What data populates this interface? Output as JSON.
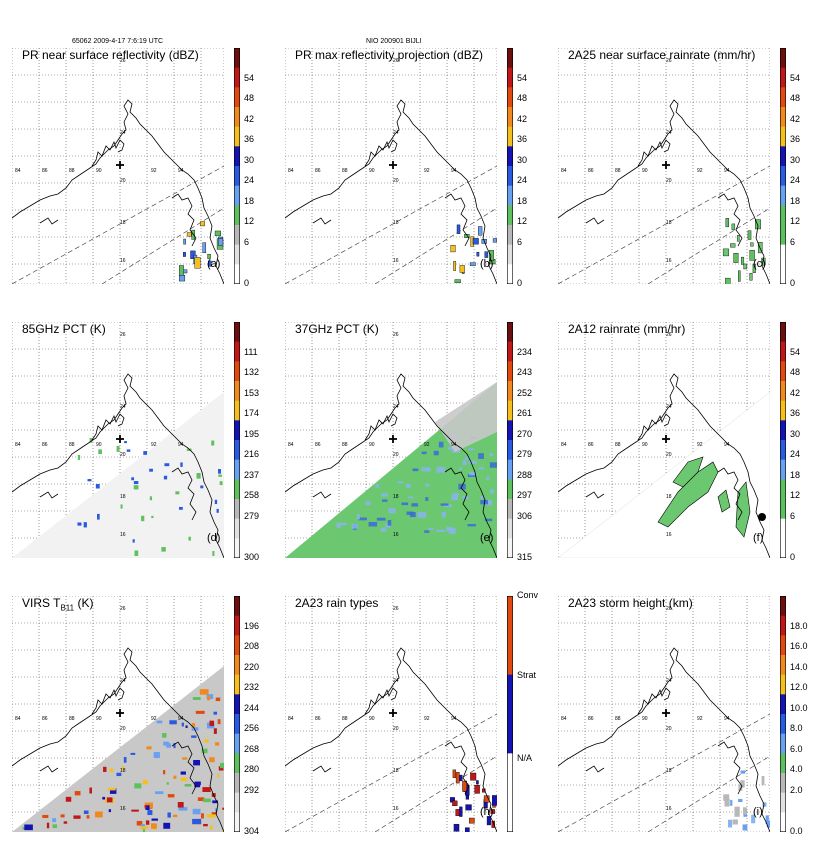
{
  "header": {
    "orbit_time": "65062 2009-4-17 7:6:19 UTC",
    "storm": "NIO 200901 BIJLI"
  },
  "map_ticks": {
    "lon": [
      "84",
      "86",
      "88",
      "90",
      "92",
      "94"
    ],
    "lat": [
      "26",
      "24",
      "20",
      "18",
      "16"
    ]
  },
  "chart_data": [
    {
      "type": "heatmap",
      "title": "PR near surface reflectivity (dBZ)",
      "panel_label": "(a)",
      "colorbar_ticks": [
        "54",
        "48",
        "42",
        "36",
        "30",
        "24",
        "18",
        "12",
        "6",
        "0"
      ],
      "colorbar_colors": [
        "#6b0f0f",
        "#c01818",
        "#e04a10",
        "#f08a20",
        "#f4c020",
        "#1414b4",
        "#2a5ae0",
        "#6aa0f0",
        "#60c060",
        "#b8b8b8",
        "#e0e0e0",
        "#ffffff"
      ],
      "swath": "narrow",
      "fill": "sparse"
    },
    {
      "type": "heatmap",
      "title": "PR max reflectivity projection (dBZ)",
      "panel_label": "(b)",
      "colorbar_ticks": [
        "54",
        "48",
        "42",
        "36",
        "30",
        "24",
        "18",
        "12",
        "6",
        "0"
      ],
      "colorbar_colors": [
        "#6b0f0f",
        "#c01818",
        "#e04a10",
        "#f08a20",
        "#f4c020",
        "#1414b4",
        "#2a5ae0",
        "#6aa0f0",
        "#60c060",
        "#b8b8b8",
        "#e0e0e0",
        "#ffffff"
      ],
      "swath": "narrow",
      "fill": "sparse"
    },
    {
      "type": "heatmap",
      "title": "2A25 near surface rainrate (mm/hr)",
      "panel_label": "(c)",
      "colorbar_ticks": [
        "54",
        "48",
        "42",
        "36",
        "30",
        "24",
        "18",
        "12",
        "6",
        "0"
      ],
      "colorbar_colors": [
        "#6b0f0f",
        "#c01818",
        "#e04a10",
        "#f08a20",
        "#f4c020",
        "#1414b4",
        "#2a5ae0",
        "#6aa0f0",
        "#60c060",
        "#60c060",
        "#ffffff",
        "#ffffff"
      ],
      "swath": "narrow",
      "fill": "sparse"
    },
    {
      "type": "heatmap",
      "title": "85GHz PCT (K)",
      "panel_label": "(d)",
      "colorbar_ticks": [
        "111",
        "132",
        "153",
        "174",
        "195",
        "216",
        "237",
        "258",
        "279",
        "300"
      ],
      "colorbar_colors": [
        "#6b0f0f",
        "#c01818",
        "#e04a10",
        "#f08a20",
        "#f4c020",
        "#1414b4",
        "#2a5ae0",
        "#6aa0f0",
        "#60c060",
        "#b8b8b8",
        "#e0e0e0",
        "#f4f4f4"
      ],
      "swath": "wide",
      "fill": "gray"
    },
    {
      "type": "heatmap",
      "title": "37GHz PCT (K)",
      "panel_label": "(e)",
      "colorbar_ticks": [
        "234",
        "243",
        "252",
        "261",
        "270",
        "279",
        "288",
        "297",
        "306",
        "315"
      ],
      "colorbar_colors": [
        "#6b0f0f",
        "#c01818",
        "#e04a10",
        "#f08a20",
        "#f4c020",
        "#1414b4",
        "#2a5ae0",
        "#6aa0f0",
        "#60c060",
        "#b8b8b8",
        "#e0e0e0",
        "#f4f4f4"
      ],
      "swath": "wide",
      "fill": "green"
    },
    {
      "type": "heatmap",
      "title": "2A12 rainrate (mm/hr)",
      "panel_label": "(f)",
      "colorbar_ticks": [
        "54",
        "48",
        "42",
        "36",
        "30",
        "24",
        "18",
        "12",
        "6",
        "0"
      ],
      "colorbar_colors": [
        "#6b0f0f",
        "#c01818",
        "#e04a10",
        "#f08a20",
        "#f4c020",
        "#1414b4",
        "#2a5ae0",
        "#6aa0f0",
        "#60c060",
        "#60c060",
        "#ffffff",
        "#ffffff"
      ],
      "swath": "wide",
      "fill": "patches"
    },
    {
      "type": "heatmap",
      "title": "VIRS T",
      "title_sub": "B11",
      "title_suffix": " (K)",
      "panel_label": "",
      "colorbar_ticks": [
        "196",
        "208",
        "220",
        "232",
        "244",
        "256",
        "268",
        "280",
        "292",
        "304"
      ],
      "colorbar_colors": [
        "#6b0f0f",
        "#c01818",
        "#e04a10",
        "#f08a20",
        "#f4c020",
        "#1414b4",
        "#2a5ae0",
        "#6aa0f0",
        "#60c060",
        "#b8b8b8",
        "#e0e0e0",
        "#f4f4f4"
      ],
      "swath": "wide",
      "fill": "virs"
    },
    {
      "type": "heatmap",
      "title": "2A23 rain types",
      "panel_label": "(h)",
      "colorbar_ticks": [
        "Conv",
        "Strat",
        "N/A"
      ],
      "colorbar_colors": [
        "#e04a10",
        "#1414b4",
        "#ffffff"
      ],
      "swath": "narrow",
      "fill": "raintype"
    },
    {
      "type": "heatmap",
      "title": "2A23 storm height (km)",
      "panel_label": "(i)",
      "colorbar_ticks": [
        "18.0",
        "16.0",
        "14.0",
        "12.0",
        "10.0",
        "8.0",
        "6.0",
        "4.0",
        "2.0",
        "0.0"
      ],
      "colorbar_colors": [
        "#6b0f0f",
        "#c01818",
        "#e04a10",
        "#f08a20",
        "#f4c020",
        "#1414b4",
        "#2a5ae0",
        "#6aa0f0",
        "#60c060",
        "#b8b8b8",
        "#e0e0e0",
        "#ffffff"
      ],
      "swath": "narrow",
      "fill": "height"
    }
  ]
}
